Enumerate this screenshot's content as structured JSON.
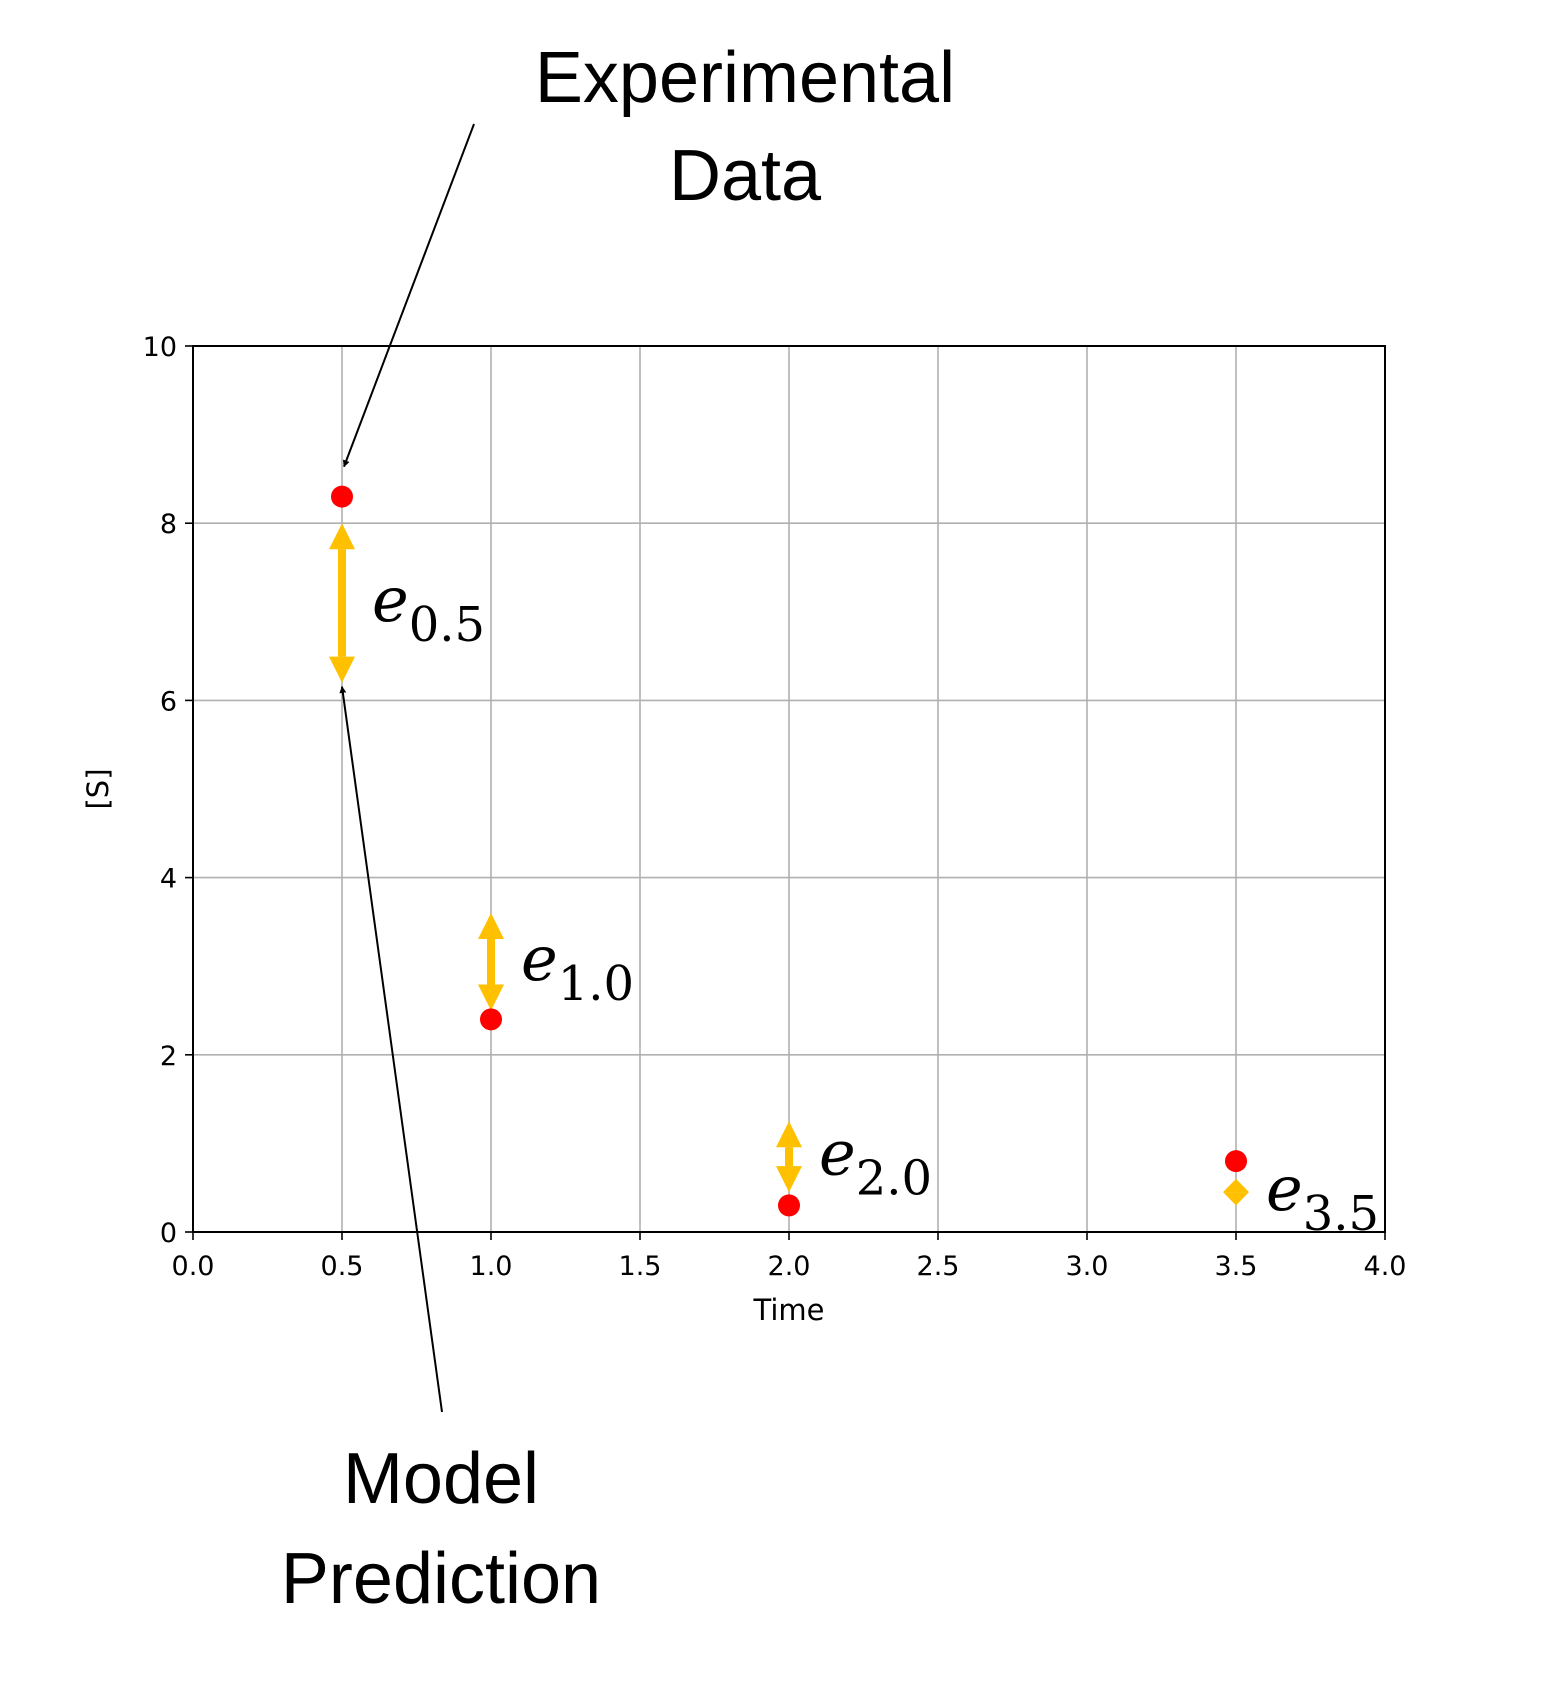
{
  "chart_data": {
    "type": "scatter",
    "xlabel": "Time",
    "ylabel": "[S]",
    "xlim": [
      0.0,
      4.0
    ],
    "ylim": [
      0,
      10
    ],
    "xticks": [
      "0.0",
      "0.5",
      "1.0",
      "1.5",
      "2.0",
      "2.5",
      "3.0",
      "3.5",
      "4.0"
    ],
    "yticks": [
      "0",
      "2",
      "4",
      "6",
      "8",
      "10"
    ],
    "grid": true,
    "colors": {
      "experimental": "#ff0000",
      "error": "#ffc000",
      "grid": "#b0b0b0"
    },
    "experimental_points": [
      {
        "x": 0.5,
        "y": 8.3
      },
      {
        "x": 1.0,
        "y": 2.4
      },
      {
        "x": 2.0,
        "y": 0.3
      },
      {
        "x": 3.5,
        "y": 0.8
      }
    ],
    "errors": [
      {
        "x": 0.5,
        "y_low": 6.2,
        "y_high": 8.0,
        "base": "e",
        "subscript": "0.5"
      },
      {
        "x": 1.0,
        "y_low": 2.5,
        "y_high": 3.6,
        "base": "e",
        "subscript": "1.0"
      },
      {
        "x": 2.0,
        "y_low": 0.45,
        "y_high": 1.25,
        "base": "e",
        "subscript": "2.0"
      },
      {
        "x": 3.5,
        "y_low": 0.3,
        "y_high": 0.6,
        "base": "e",
        "subscript": "3.5"
      }
    ],
    "annotations": [
      {
        "lines": [
          "Experimental",
          "Data"
        ],
        "points_to": {
          "x": 0.5,
          "y": 8.3
        }
      },
      {
        "lines": [
          "Model",
          "Prediction"
        ],
        "points_to": {
          "x": 0.5,
          "y": 6.2
        }
      }
    ]
  }
}
